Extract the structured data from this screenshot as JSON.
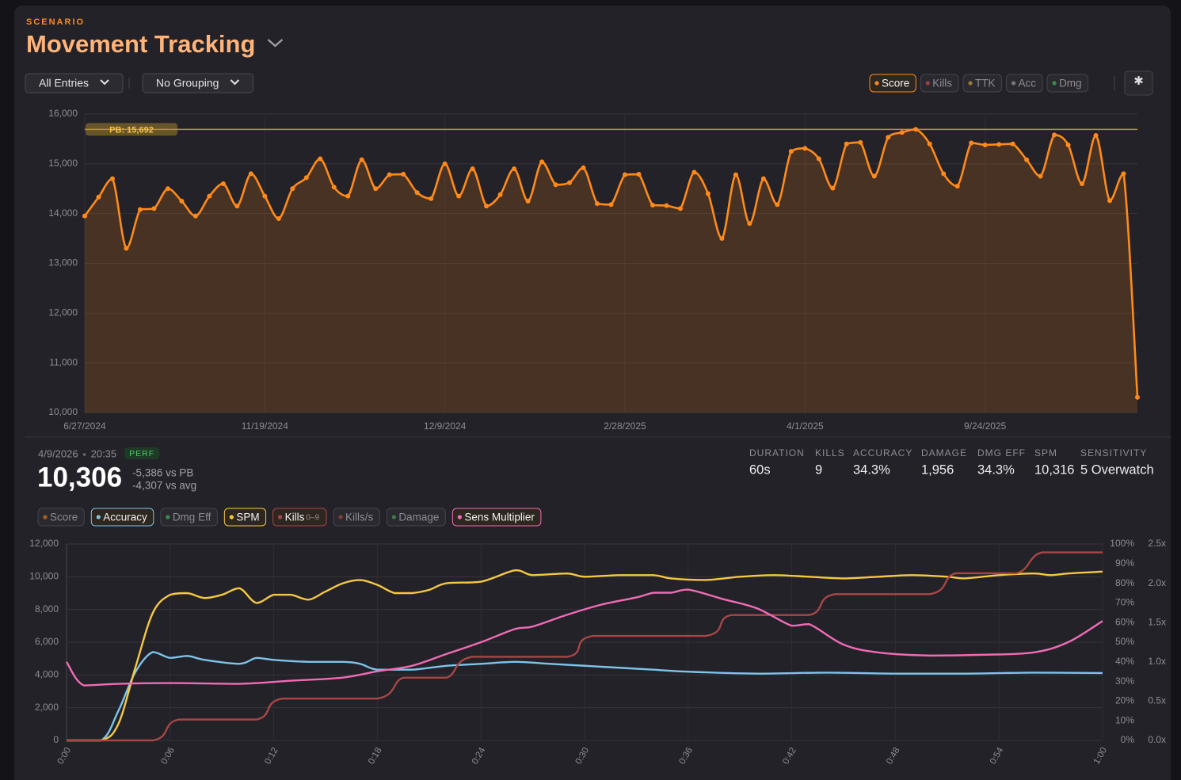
{
  "header": {
    "section": "SCENARIO",
    "title": "Movement Tracking"
  },
  "filters": [
    "All Entries",
    "No Grouping"
  ],
  "toggles": [
    {
      "name": "Score",
      "color": "#ff8a1a",
      "active": true
    },
    {
      "name": "Kills",
      "color": "#9a4040",
      "active": false
    },
    {
      "name": "TTK",
      "color": "#9a7a30",
      "active": false
    },
    {
      "name": "Acc",
      "color": "#777777",
      "active": false
    },
    {
      "name": "Dmg",
      "color": "#3a8a4a",
      "active": false
    }
  ],
  "entry": {
    "date": "4/9/2026",
    "time": "20:35",
    "badge": "PERF",
    "score": "10,306",
    "vs_pb": "-5,386 vs PB",
    "vs_avg": "-4,307 vs avg"
  },
  "stats": [
    {
      "label": "DURATION",
      "value": "60s"
    },
    {
      "label": "KILLS",
      "value": "9"
    },
    {
      "label": "ACCURACY",
      "value": "34.3%"
    },
    {
      "label": "DAMAGE",
      "value": "1,956"
    },
    {
      "label": "DMG EFF",
      "value": "34.3%"
    },
    {
      "label": "SPM",
      "value": "10,316"
    },
    {
      "label": "SENSITIVITY",
      "value": "5 Overwatch"
    }
  ],
  "chart_data": [
    {
      "type": "line",
      "color": "#ff8a1a",
      "area": true,
      "grid": true,
      "categories": [
        "6/27/2024",
        null,
        null,
        null,
        null,
        null,
        null,
        null,
        null,
        null,
        null,
        null,
        null,
        "11/19/2024",
        null,
        null,
        null,
        null,
        null,
        null,
        null,
        null,
        null,
        null,
        null,
        null,
        "12/9/2024",
        null,
        null,
        null,
        null,
        null,
        null,
        null,
        null,
        null,
        null,
        null,
        null,
        "2/28/2025",
        null,
        null,
        null,
        null,
        null,
        null,
        null,
        null,
        null,
        null,
        null,
        null,
        "4/1/2025",
        null,
        null,
        null,
        null,
        null,
        null,
        null,
        null,
        null,
        null,
        null,
        null,
        "9/24/2025",
        null,
        null,
        null,
        null,
        null,
        null,
        null,
        null,
        null,
        null,
        null
      ],
      "values": [
        13950,
        14330,
        14700,
        13300,
        14080,
        14100,
        14500,
        14250,
        13950,
        14350,
        14600,
        14150,
        14800,
        14350,
        13900,
        14500,
        14720,
        15100,
        14530,
        14350,
        15080,
        14500,
        14780,
        14790,
        14420,
        14300,
        15000,
        14350,
        14900,
        14150,
        14380,
        14900,
        14250,
        15040,
        14580,
        14620,
        14920,
        14200,
        14180,
        14780,
        14790,
        14170,
        14160,
        14100,
        14830,
        14400,
        13500,
        14780,
        13800,
        14700,
        14180,
        15250,
        15310,
        15100,
        14510,
        15400,
        15430,
        14750,
        15530,
        15630,
        15692,
        15400,
        14800,
        14550,
        15420,
        15380,
        15390,
        15400,
        15080,
        14750,
        15580,
        15380,
        14600,
        15570,
        14260,
        14800,
        10306
      ],
      "ylim": [
        10000,
        16000
      ],
      "yticks": [
        {
          "value": 10000,
          "label": "10,000"
        },
        {
          "value": 11000,
          "label": "11,000"
        },
        {
          "value": 12000,
          "label": "12,000"
        },
        {
          "value": 13000,
          "label": "13,000"
        },
        {
          "value": 14000,
          "label": "14,000"
        },
        {
          "value": 15000,
          "label": "15,000"
        },
        {
          "value": 16000,
          "label": "16,000"
        }
      ],
      "reference_line": {
        "value": 15692,
        "label": "PB: 15,692",
        "color": "#b8922e"
      }
    },
    {
      "type": "line",
      "grid": true,
      "xlim": [
        0,
        60
      ],
      "xticks": [
        {
          "value": 0,
          "label": "0:00"
        },
        {
          "value": 6,
          "label": "0:06"
        },
        {
          "value": 12,
          "label": "0:12"
        },
        {
          "value": 18,
          "label": "0:18"
        },
        {
          "value": 24,
          "label": "0:24"
        },
        {
          "value": 30,
          "label": "0:30"
        },
        {
          "value": 36,
          "label": "0:36"
        },
        {
          "value": 42,
          "label": "0:42"
        },
        {
          "value": 48,
          "label": "0:48"
        },
        {
          "value": 54,
          "label": "0:54"
        },
        {
          "value": 60,
          "label": "1:00"
        }
      ],
      "ylim": [
        0,
        12000
      ],
      "yticks": [
        0,
        {
          "value": 2000,
          "label": "2,000"
        },
        {
          "value": 4000,
          "label": "4,000"
        },
        {
          "value": 6000,
          "label": "6,000"
        },
        {
          "value": 8000,
          "label": "8,000"
        },
        {
          "value": 10000,
          "label": "10,000"
        },
        {
          "value": 12000,
          "label": "12,000"
        }
      ],
      "y2lim": [
        0,
        100
      ],
      "y2ticks": [
        {
          "value": 0,
          "label": "0%"
        },
        {
          "value": 10,
          "label": "10%"
        },
        {
          "value": 20,
          "label": "20%"
        },
        {
          "value": 30,
          "label": "30%"
        },
        {
          "value": 40,
          "label": "40%"
        },
        {
          "value": 50,
          "label": "50%"
        },
        {
          "value": 60,
          "label": "60%"
        },
        {
          "value": 70,
          "label": "70%"
        },
        {
          "value": 80,
          "label": "80%"
        },
        {
          "value": 90,
          "label": "90%"
        },
        {
          "value": 100,
          "label": "100%"
        }
      ],
      "y3lim": [
        0,
        2.5
      ],
      "y3ticks": [
        {
          "value": 0,
          "label": "0.0x"
        },
        {
          "value": 0.5,
          "label": "0.5x"
        },
        {
          "value": 1,
          "label": "1.0x"
        },
        {
          "value": 1.5,
          "label": "1.5x"
        },
        {
          "value": 2,
          "label": "2.0x"
        },
        {
          "value": 2.5,
          "label": "2.5x"
        }
      ],
      "y4lim": [
        0,
        9.4
      ],
      "series": [
        {
          "name": "Score",
          "color": "#a0622a",
          "visible": false
        },
        {
          "name": "Accuracy",
          "color": "#7cc4ea",
          "visible": true,
          "axis": "y2",
          "x": [
            0,
            2,
            3,
            4,
            5,
            6,
            7,
            8,
            10,
            11,
            12,
            14,
            16,
            17,
            18,
            20,
            22,
            24,
            26,
            28,
            30,
            32,
            34,
            36,
            40,
            44,
            48,
            52,
            56,
            60
          ],
          "values": [
            0,
            0,
            15,
            35,
            45,
            42,
            43,
            41,
            39,
            42,
            41,
            40,
            40,
            39,
            36,
            36,
            38,
            39,
            40,
            39,
            38,
            37,
            36,
            35,
            34,
            34.5,
            34,
            34,
            34.5,
            34.3
          ]
        },
        {
          "name": "Dmg Eff",
          "color": "#3a8a4a",
          "visible": false
        },
        {
          "name": "SPM",
          "color": "#f5c842",
          "visible": true,
          "x": [
            0,
            2,
            3,
            4,
            5,
            6,
            7,
            8,
            9,
            10,
            11,
            12,
            13,
            14,
            15,
            16,
            17,
            18,
            19,
            20,
            21,
            22,
            24,
            26,
            27,
            29,
            30,
            32,
            34,
            35,
            37,
            39,
            41,
            43,
            45,
            47,
            49,
            51,
            52,
            54,
            56,
            57,
            58,
            60
          ],
          "values": [
            0,
            0,
            1000,
            4500,
            7800,
            8900,
            9000,
            8700,
            8900,
            9300,
            8400,
            8900,
            8900,
            8600,
            9100,
            9600,
            9800,
            9500,
            9000,
            9000,
            9200,
            9600,
            9700,
            10400,
            10100,
            10200,
            10000,
            10100,
            10100,
            9900,
            9800,
            10000,
            10100,
            10000,
            9900,
            10000,
            10100,
            10000,
            9900,
            10100,
            10200,
            10100,
            10200,
            10316
          ]
        },
        {
          "name": "Kills",
          "range": "0–9",
          "color": "#a84646",
          "visible": true,
          "axis": "y4",
          "x": [
            0,
            5,
            6.5,
            11,
            12.5,
            18,
            19.5,
            22,
            23.5,
            29,
            30.5,
            37,
            38.5,
            43,
            44.5,
            50,
            51.5,
            55,
            56.5,
            60
          ],
          "values": [
            0,
            0,
            1,
            1,
            2,
            2,
            3,
            3,
            4,
            4,
            5,
            5,
            6,
            6,
            7,
            7,
            8,
            8,
            9,
            9
          ]
        },
        {
          "name": "Kills/s",
          "color": "#8a3a3a",
          "visible": false
        },
        {
          "name": "Damage",
          "color": "#3a7a4a",
          "visible": false
        },
        {
          "name": "Sens Multiplier",
          "color": "#f06bb5",
          "visible": true,
          "axis": "y3",
          "x": [
            0,
            1,
            3,
            6,
            10,
            13,
            16,
            18,
            20,
            22,
            24,
            26,
            27,
            29,
            31,
            33,
            34,
            35,
            36,
            38,
            40,
            42,
            43,
            45,
            47,
            50,
            53,
            56,
            58,
            60
          ],
          "values": [
            1.0,
            0.7,
            0.72,
            0.73,
            0.72,
            0.76,
            0.8,
            0.88,
            0.95,
            1.1,
            1.25,
            1.42,
            1.45,
            1.6,
            1.73,
            1.82,
            1.88,
            1.88,
            1.92,
            1.8,
            1.68,
            1.46,
            1.48,
            1.22,
            1.12,
            1.08,
            1.09,
            1.12,
            1.25,
            1.52
          ]
        }
      ]
    }
  ]
}
